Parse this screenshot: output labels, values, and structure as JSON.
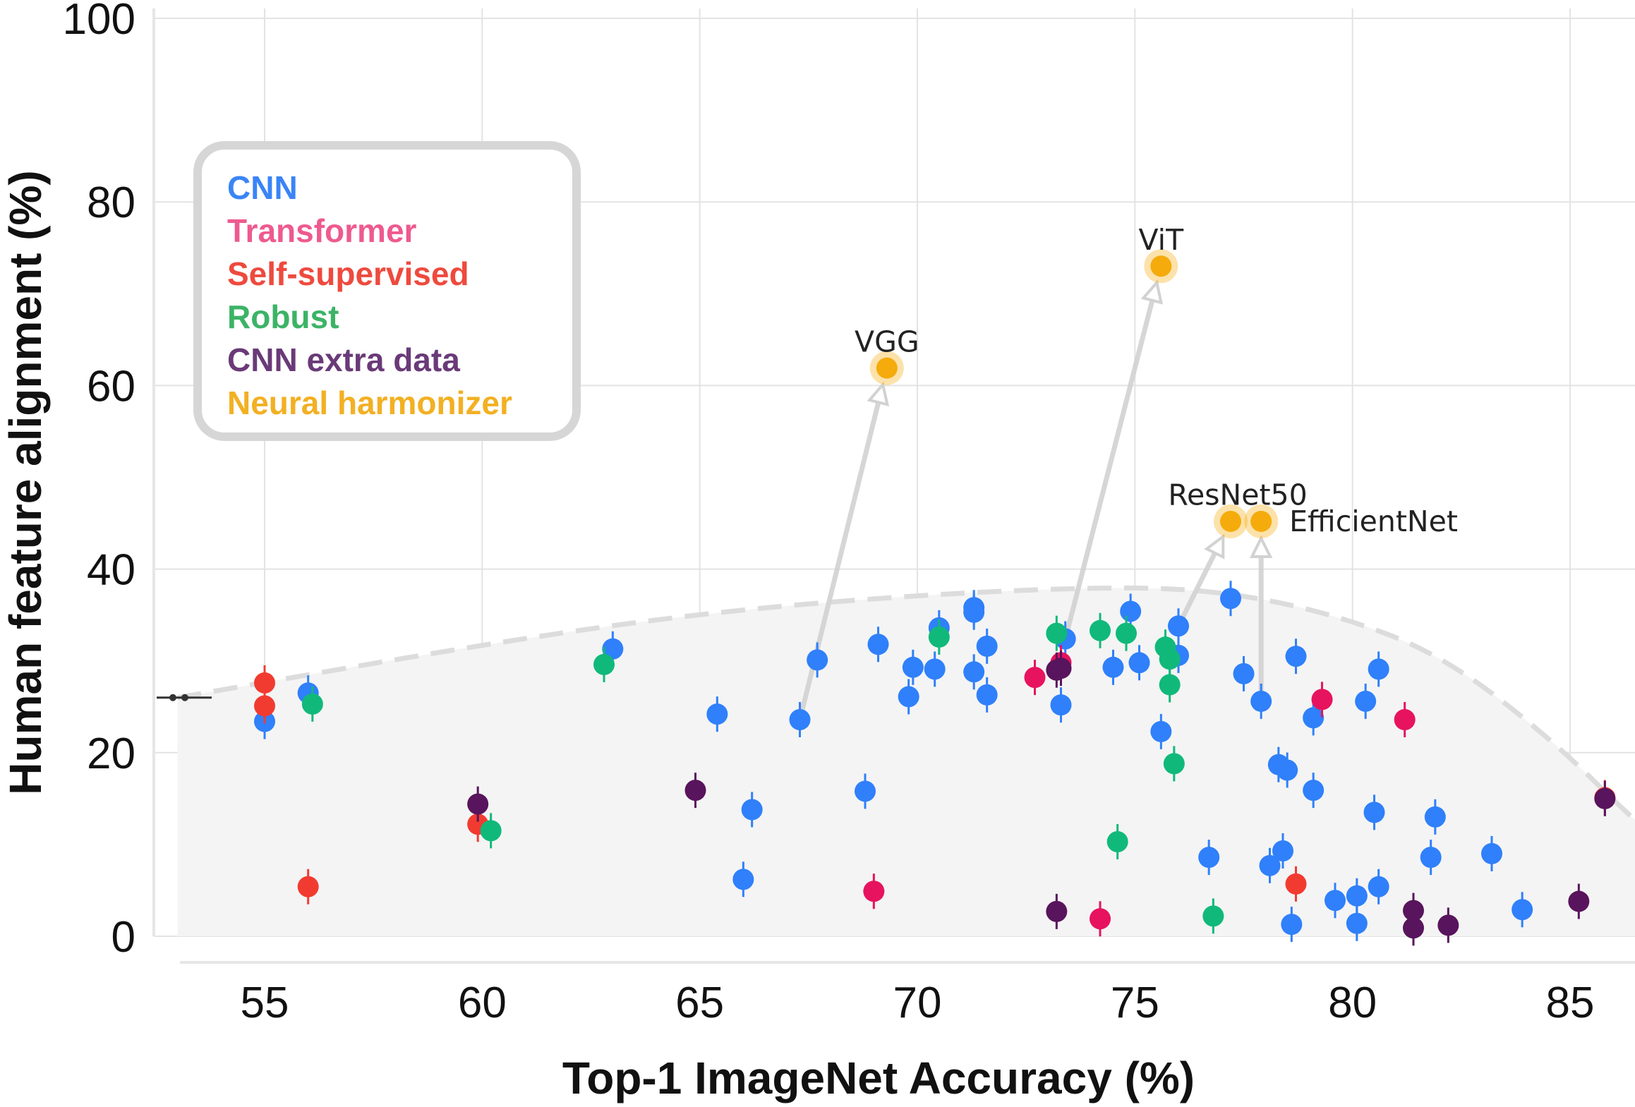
{
  "chart_data": {
    "type": "scatter",
    "xlabel": "Top-1 ImageNet Accuracy (%)",
    "ylabel": "Human feature alignment (%)",
    "xlim": [
      53,
      87.3
    ],
    "ylim": [
      0,
      100
    ],
    "xticks": [
      55,
      60,
      65,
      70,
      75,
      80,
      85
    ],
    "yticks": [
      0,
      20,
      40,
      60,
      80,
      100
    ],
    "grid": true,
    "legend_position": "upper-left",
    "colors": {
      "CNN": "#2f80fa",
      "Transformer": "#e7135e",
      "Self-supervised": "#f23b30",
      "Robust": "#10b97a",
      "CNN extra data": "#58145c",
      "Neural harmonizer": "#f5ab0c"
    },
    "legend": [
      {
        "label": "CNN",
        "color": "#3a84f7"
      },
      {
        "label": "Transformer",
        "color": "#ee5a8f"
      },
      {
        "label": "Self-supervised",
        "color": "#ee4a3e"
      },
      {
        "label": "Robust",
        "color": "#3cb366"
      },
      {
        "label": "CNN extra data",
        "color": "#6a3a78"
      },
      {
        "label": "Neural harmonizer",
        "color": "#f2b023"
      }
    ],
    "frontier": [
      [
        53,
        26
      ],
      [
        60,
        31.8
      ],
      [
        65,
        35.2
      ],
      [
        70,
        37.2
      ],
      [
        74.5,
        38.1
      ],
      [
        77,
        37.6
      ],
      [
        79.5,
        35.2
      ],
      [
        82,
        30.8
      ],
      [
        84.5,
        21.8
      ],
      [
        86.5,
        12.5
      ],
      [
        87.3,
        9.5
      ]
    ],
    "series": [
      {
        "name": "CNN",
        "points": [
          [
            55,
            23.4
          ],
          [
            56,
            26.5
          ],
          [
            63,
            31.3
          ],
          [
            65.4,
            24.2
          ],
          [
            66,
            6.2
          ],
          [
            66.2,
            13.8
          ],
          [
            67.3,
            23.6
          ],
          [
            67.7,
            30.1
          ],
          [
            68.8,
            15.8
          ],
          [
            69.1,
            31.8
          ],
          [
            69.8,
            26.1
          ],
          [
            69.9,
            29.3
          ],
          [
            70.4,
            29.1
          ],
          [
            70.5,
            33.6
          ],
          [
            71.3,
            28.8
          ],
          [
            71.3,
            35.8
          ],
          [
            71.3,
            35.3
          ],
          [
            71.6,
            26.3
          ],
          [
            71.6,
            31.6
          ],
          [
            73.3,
            25.2
          ],
          [
            73.4,
            32.4
          ],
          [
            74.5,
            29.3
          ],
          [
            74.9,
            35.4
          ],
          [
            75.1,
            29.8
          ],
          [
            75.6,
            22.3
          ],
          [
            76,
            30.6
          ],
          [
            76,
            33.8
          ],
          [
            76.7,
            8.6
          ],
          [
            77.2,
            36.8
          ],
          [
            77.5,
            28.6
          ],
          [
            77.9,
            25.6
          ],
          [
            78.1,
            7.7
          ],
          [
            78.3,
            18.7
          ],
          [
            78.4,
            9.3
          ],
          [
            78.5,
            18.1
          ],
          [
            78.6,
            1.3
          ],
          [
            78.7,
            30.5
          ],
          [
            79.1,
            23.8
          ],
          [
            79.1,
            15.9
          ],
          [
            79.6,
            3.9
          ],
          [
            80.1,
            1.4
          ],
          [
            80.1,
            4.4
          ],
          [
            80.3,
            25.6
          ],
          [
            80.5,
            13.5
          ],
          [
            80.6,
            5.4
          ],
          [
            80.6,
            29.1
          ],
          [
            81.8,
            8.6
          ],
          [
            81.9,
            13
          ],
          [
            83.2,
            9
          ],
          [
            83.9,
            2.9
          ]
        ]
      },
      {
        "name": "Transformer",
        "points": [
          [
            69,
            4.9
          ],
          [
            72.7,
            28.2
          ],
          [
            73.3,
            29.8
          ],
          [
            74.2,
            1.9
          ],
          [
            79.3,
            25.8
          ],
          [
            81.2,
            23.6
          ]
        ]
      },
      {
        "name": "Self-supervised",
        "points": [
          [
            55,
            27.6
          ],
          [
            55,
            25.1
          ],
          [
            56,
            5.4
          ],
          [
            59.9,
            12.2
          ],
          [
            78.7,
            5.7
          ],
          [
            85.8,
            15.1
          ]
        ]
      },
      {
        "name": "Robust",
        "points": [
          [
            56.1,
            25.3
          ],
          [
            60.2,
            11.5
          ],
          [
            62.8,
            29.6
          ],
          [
            70.5,
            32.6
          ],
          [
            73.2,
            33
          ],
          [
            74.2,
            33.3
          ],
          [
            74.8,
            33
          ],
          [
            74.6,
            10.3
          ],
          [
            75.7,
            31.5
          ],
          [
            75.8,
            27.4
          ],
          [
            75.8,
            30.2
          ],
          [
            75.9,
            18.8
          ],
          [
            76.8,
            2.2
          ]
        ]
      },
      {
        "name": "CNN extra data",
        "points": [
          [
            59.9,
            14.4
          ],
          [
            64.9,
            15.9
          ],
          [
            73.2,
            29
          ],
          [
            73.3,
            29.2
          ],
          [
            73.2,
            2.7
          ],
          [
            81.4,
            2.8
          ],
          [
            81.4,
            0.9
          ],
          [
            82.2,
            1.2
          ],
          [
            85.2,
            3.8
          ],
          [
            85.8,
            15
          ]
        ]
      }
    ],
    "harmonized": [
      {
        "label": "VGG",
        "x": 69.3,
        "y": 61.9,
        "from": [
          67.3,
          23.6
        ],
        "label_anchor": "middle",
        "label_dy": -1.8
      },
      {
        "label": "ViT",
        "x": 75.6,
        "y": 73,
        "from": [
          73.4,
          32.4
        ],
        "label_anchor": "middle",
        "label_dy": -1.8
      },
      {
        "label": "ResNet50",
        "x": 77.2,
        "y": 45.2,
        "from": [
          76,
          33.8
        ],
        "label_anchor": "middle",
        "label_dy": -1.8
      },
      {
        "label": "EfficientNet",
        "x": 77.9,
        "y": 45.2,
        "from": [
          77.9,
          25.6
        ],
        "label_anchor": "start",
        "label_dy": 0
      }
    ]
  }
}
